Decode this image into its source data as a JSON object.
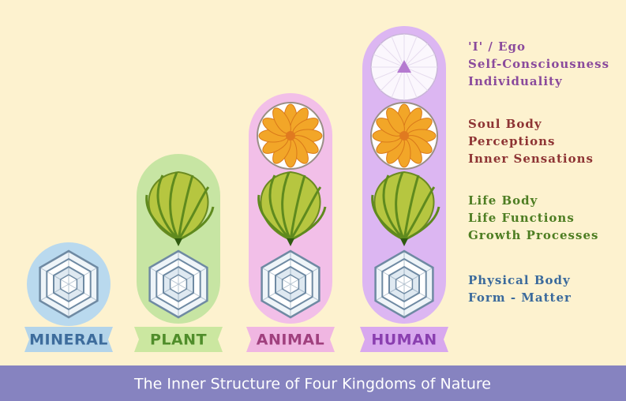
{
  "kingdoms": [
    {
      "label": "MINERAL"
    },
    {
      "label": "PLANT"
    },
    {
      "label": "ANIMAL"
    },
    {
      "label": "HUMAN"
    }
  ],
  "layers": [
    {
      "lines": [
        "'I' / Ego",
        "Self-Consciousness",
        "Individuality"
      ]
    },
    {
      "lines": [
        "Soul Body",
        "Perceptions",
        "Inner Sensations"
      ]
    },
    {
      "lines": [
        "Life Body",
        "Life Functions",
        "Growth Processes"
      ]
    },
    {
      "lines": [
        "Physical Body",
        "Form - Matter"
      ]
    }
  ],
  "footer": {
    "title": "The Inner Structure of Four Kingdoms of Nature"
  }
}
